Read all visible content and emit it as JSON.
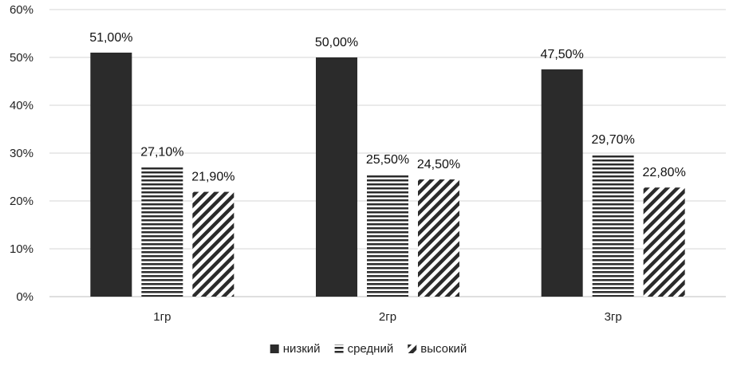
{
  "chart_data": {
    "type": "bar",
    "title": "",
    "xlabel": "",
    "ylabel": "",
    "categories": [
      "1гр",
      "2гр",
      "3гр"
    ],
    "ylim": [
      0,
      60
    ],
    "yticks": [
      0,
      10,
      20,
      30,
      40,
      50,
      60
    ],
    "ytick_labels": [
      "0%",
      "10%",
      "20%",
      "30%",
      "40%",
      "50%",
      "60%"
    ],
    "grid": true,
    "legend_position": "bottom",
    "series": [
      {
        "name": "низкий",
        "values": [
          51.0,
          50.0,
          47.5
        ],
        "labels": [
          "51,00%",
          "50,00%",
          "47,50%"
        ],
        "fill": "solid",
        "color": "#2b2b2b"
      },
      {
        "name": "средний",
        "values": [
          27.1,
          25.5,
          29.7
        ],
        "labels": [
          "27,10%",
          "25,50%",
          "29,70%"
        ],
        "fill": "horizontal",
        "color": "#2b2b2b"
      },
      {
        "name": "высокий",
        "values": [
          21.9,
          24.5,
          22.8
        ],
        "labels": [
          "21,90%",
          "24,50%",
          "22,80%"
        ],
        "fill": "diagonal",
        "color": "#2b2b2b"
      }
    ]
  }
}
